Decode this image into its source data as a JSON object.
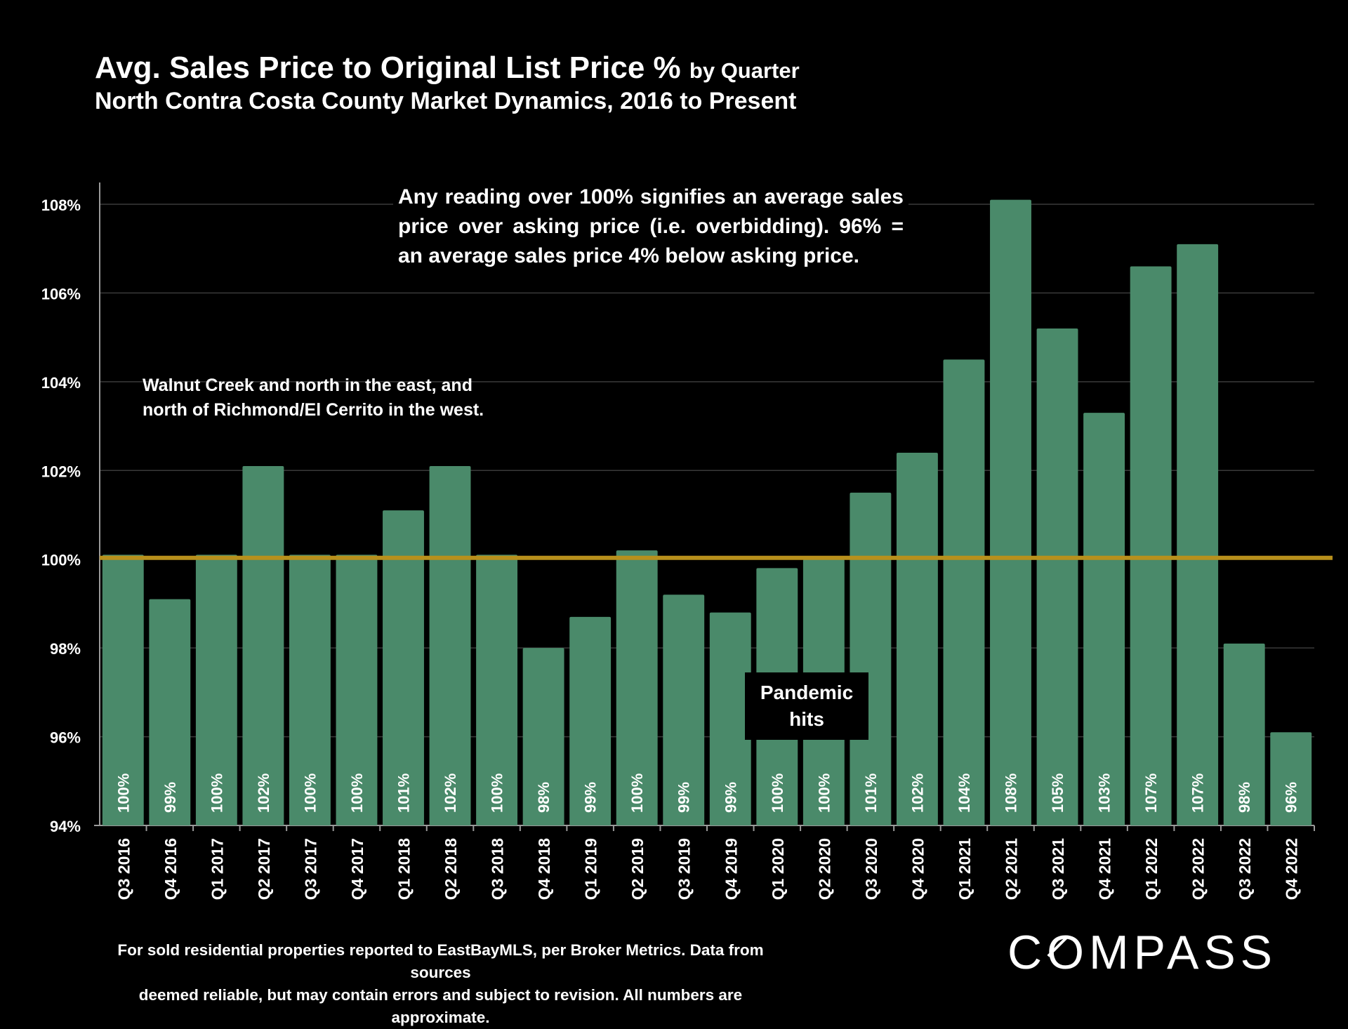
{
  "title": {
    "main": "Avg. Sales Price to Original List Price %",
    "main_suffix": "by Quarter",
    "subtitle": "North Contra Costa County Market Dynamics, 2016 to Present"
  },
  "annotations": {
    "over_100": "Any reading over 100% signifies an average sales price over asking price (i.e. overbidding). 96% = an average sales price 4% below asking price.",
    "region_line1": "Walnut Creek and north in the east, and",
    "region_line2": "north of Richmond/El Cerrito in the west.",
    "pandemic_line1": "Pandemic",
    "pandemic_line2": "hits"
  },
  "footnote": {
    "line1": "For sold residential properties reported to EastBayMLS, per Broker Metrics. Data from sources",
    "line2": "deemed reliable, but may contain errors and subject to revision. All numbers are approximate."
  },
  "logo": {
    "before": "C",
    "ring": "O",
    "after": "MPASS"
  },
  "colors": {
    "background": "#000000",
    "bar": "#4a8a6a",
    "reference_line": "#b8901c",
    "text": "#ffffff",
    "grid": "#3a3a3a"
  },
  "chart_data": {
    "type": "bar",
    "title": "Avg. Sales Price to Original List Price % by Quarter",
    "xlabel": "",
    "ylabel": "",
    "ylim": [
      94,
      108
    ],
    "yticks": [
      94,
      96,
      98,
      100,
      102,
      104,
      106,
      108
    ],
    "ytick_labels": [
      "94%",
      "96%",
      "98%",
      "100%",
      "102%",
      "104%",
      "106%",
      "108%"
    ],
    "reference_line": 100,
    "grid": true,
    "categories": [
      "Q3 2016",
      "Q4 2016",
      "Q1 2017",
      "Q2 2017",
      "Q3 2017",
      "Q4 2017",
      "Q1 2018",
      "Q2 2018",
      "Q3 2018",
      "Q4 2018",
      "Q1 2019",
      "Q2 2019",
      "Q3 2019",
      "Q4 2019",
      "Q1 2020",
      "Q2 2020",
      "Q3 2020",
      "Q4 2020",
      "Q1 2021",
      "Q2 2021",
      "Q3 2021",
      "Q4 2021",
      "Q1 2022",
      "Q2 2022",
      "Q3 2022",
      "Q4 2022"
    ],
    "values": [
      100.1,
      99.1,
      100.1,
      102.1,
      100.1,
      100.1,
      101.1,
      102.1,
      100.1,
      98.0,
      98.7,
      100.2,
      99.2,
      98.8,
      99.8,
      100.0,
      101.5,
      102.4,
      104.5,
      108.1,
      105.2,
      103.3,
      106.6,
      107.1,
      98.1,
      96.1
    ],
    "labels": [
      "100%",
      "99%",
      "100%",
      "102%",
      "100%",
      "100%",
      "101%",
      "102%",
      "100%",
      "98%",
      "99%",
      "100%",
      "99%",
      "99%",
      "100%",
      "100%",
      "101%",
      "102%",
      "104%",
      "108%",
      "105%",
      "103%",
      "107%",
      "107%",
      "98%",
      "96%"
    ]
  }
}
